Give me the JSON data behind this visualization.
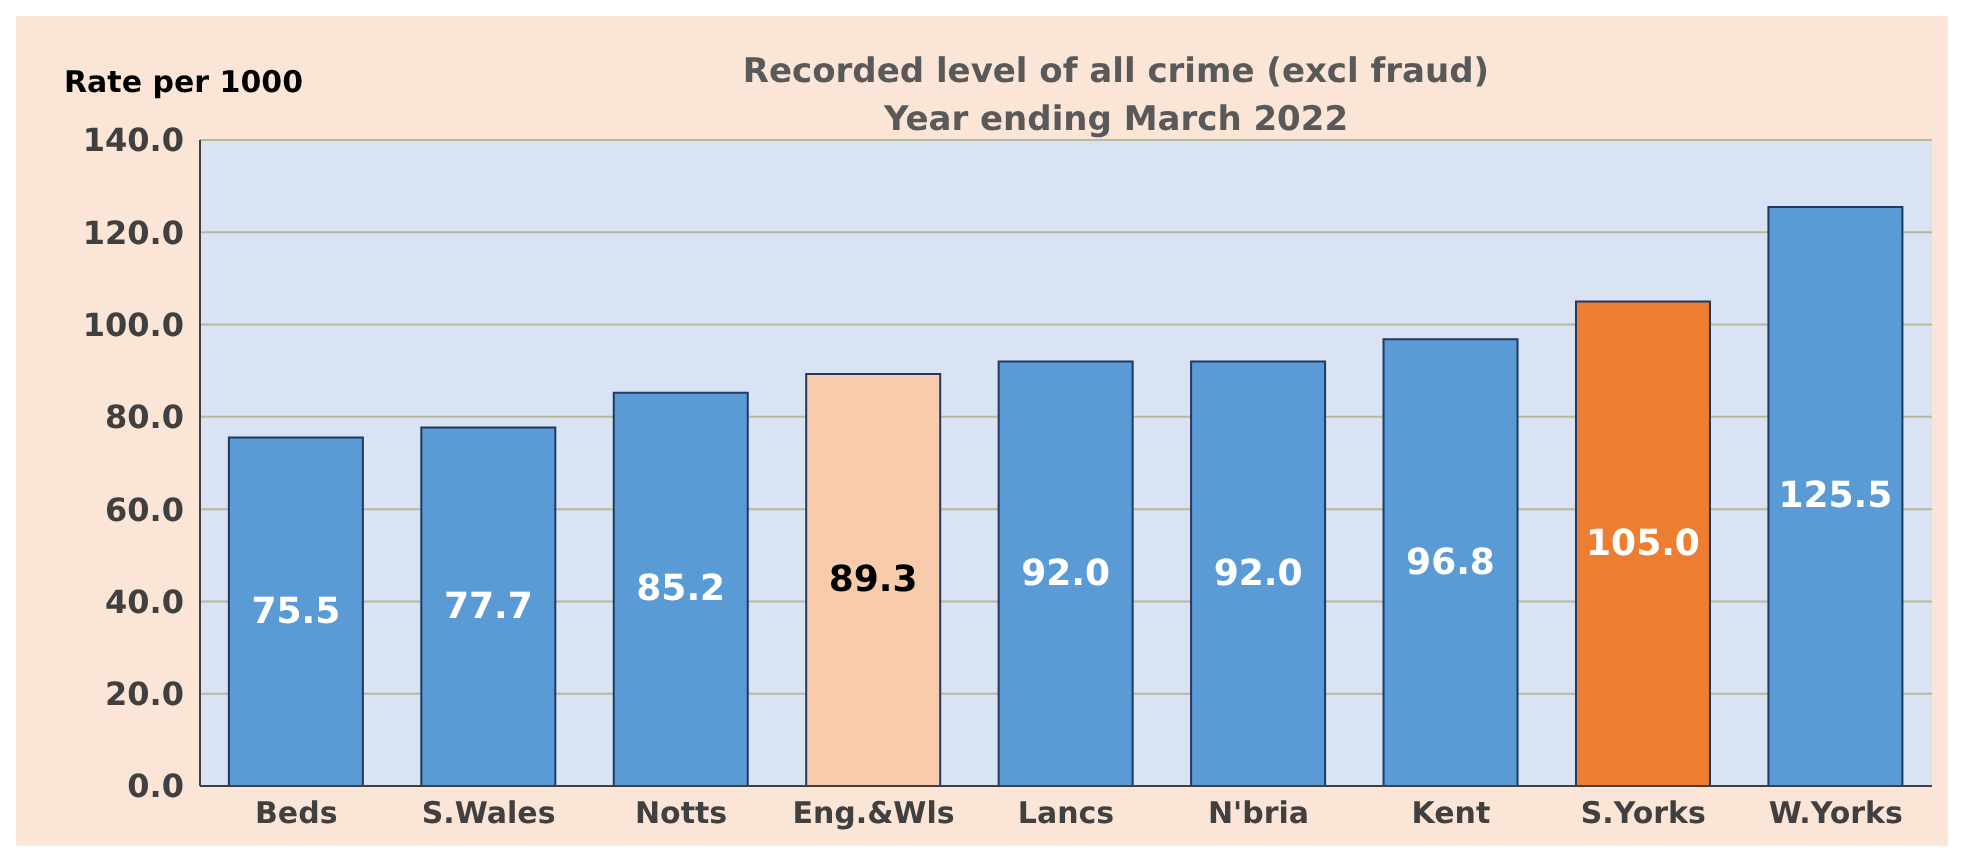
{
  "chart_data": {
    "type": "bar",
    "title": "Recorded level of all crime (excl fraud)",
    "subtitle": "Year ending March 2022",
    "ylabel": "Rate per 1000",
    "categories": [
      "Beds",
      "S.Wales",
      "Notts",
      "Eng.&Wls",
      "Lancs",
      "N'bria",
      "Kent",
      "S.Yorks",
      "W.Yorks"
    ],
    "values": [
      75.5,
      77.7,
      85.2,
      89.3,
      92.0,
      92.0,
      96.8,
      105.0,
      125.5
    ],
    "colors": [
      "#5b9bd5",
      "#5b9bd5",
      "#5b9bd5",
      "#f8cbad",
      "#5b9bd5",
      "#5b9bd5",
      "#5b9bd5",
      "#ed7d31",
      "#5b9bd5"
    ],
    "ylim": [
      0,
      140
    ],
    "yticks": [
      {
        "value": 0,
        "label": "0.0"
      },
      {
        "value": 20,
        "label": "20.0"
      },
      {
        "value": 40,
        "label": "40.0"
      },
      {
        "value": 60,
        "label": "60.0"
      },
      {
        "value": 80,
        "label": "80.0"
      },
      {
        "value": 100,
        "label": "100.0"
      },
      {
        "value": 120,
        "label": "120.0"
      },
      {
        "value": 140,
        "label": "140.0"
      }
    ],
    "value_labels": [
      "75.5",
      "77.7",
      "85.2",
      "89.3",
      "92.0",
      "92.0",
      "96.8",
      "105.0",
      "125.5"
    ],
    "grid": "y"
  }
}
